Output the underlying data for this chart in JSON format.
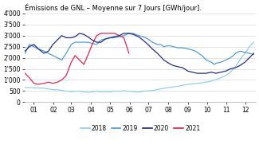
{
  "title": "Émissions de GNL – Moyenne sur 7 Jours [GWh/jour].",
  "colors": {
    "2018": "#87CEEB",
    "2019": "#4499DD",
    "2020": "#1a237e",
    "2021": "#e8194a"
  },
  "legend_labels": [
    "2018",
    "2019",
    "2020",
    "2021"
  ],
  "months": [
    "01",
    "02",
    "03",
    "04",
    "05",
    "06",
    "07",
    "08",
    "09",
    "10",
    "11",
    "12"
  ],
  "month_positions": [
    15,
    46,
    74,
    105,
    135,
    166,
    196,
    227,
    258,
    288,
    319,
    349
  ],
  "ytick_labels": [
    "0",
    "500",
    "1'000",
    "1'500",
    "2'000",
    "2'500",
    "3'000",
    "3'500",
    "4'000"
  ],
  "series_2018": {
    "days": [
      1,
      8,
      15,
      22,
      31,
      38,
      45,
      52,
      59,
      66,
      74,
      80,
      87,
      94,
      100,
      105,
      110,
      115,
      120,
      127,
      135,
      142,
      150,
      157,
      165,
      172,
      180,
      187,
      195,
      202,
      210,
      215,
      220,
      228,
      235,
      242,
      250,
      258,
      265,
      273,
      280,
      287,
      295,
      302,
      310,
      318,
      325,
      333,
      340,
      348,
      355,
      362
    ],
    "values": [
      650,
      660,
      640,
      640,
      630,
      590,
      570,
      560,
      530,
      500,
      470,
      480,
      500,
      460,
      445,
      450,
      470,
      500,
      460,
      480,
      460,
      500,
      490,
      520,
      490,
      470,
      450,
      490,
      510,
      520,
      570,
      600,
      620,
      660,
      690,
      710,
      760,
      800,
      820,
      840,
      870,
      900,
      950,
      1020,
      1100,
      1200,
      1350,
      1600,
      1900,
      2200,
      2500,
      2700
    ]
  },
  "series_2019": {
    "days": [
      1,
      8,
      15,
      22,
      31,
      38,
      45,
      52,
      59,
      66,
      74,
      80,
      87,
      94,
      100,
      107,
      114,
      121,
      128,
      135,
      142,
      150,
      157,
      165,
      172,
      180,
      187,
      195,
      202,
      210,
      215,
      220,
      228,
      235,
      242,
      250,
      258,
      265,
      270,
      275,
      280,
      287,
      295,
      300,
      302,
      310,
      318,
      325,
      330,
      333,
      340,
      348,
      355,
      362
    ],
    "values": [
      2200,
      2600,
      2500,
      2400,
      2300,
      2200,
      2100,
      2000,
      1900,
      2200,
      2600,
      2700,
      2700,
      2700,
      2700,
      2650,
      2600,
      2800,
      2850,
      2900,
      2900,
      2950,
      3000,
      3100,
      3100,
      3000,
      2950,
      2850,
      2700,
      2600,
      2600,
      2500,
      2550,
      2500,
      2450,
      2450,
      2400,
      2350,
      2300,
      2200,
      2100,
      1900,
      1800,
      1700,
      1750,
      1800,
      1900,
      2000,
      2100,
      2200,
      2300,
      2250,
      2200,
      2150
    ]
  },
  "series_2020": {
    "days": [
      1,
      8,
      15,
      22,
      31,
      38,
      45,
      52,
      59,
      66,
      74,
      80,
      87,
      94,
      100,
      107,
      114,
      121,
      128,
      135,
      142,
      150,
      157,
      165,
      172,
      180,
      187,
      195,
      202,
      210,
      215,
      220,
      228,
      235,
      242,
      250,
      258,
      265,
      273,
      280,
      287,
      295,
      302,
      310,
      318,
      325,
      333,
      340,
      348,
      355,
      362
    ],
    "values": [
      2300,
      2500,
      2600,
      2400,
      2200,
      2300,
      2600,
      2800,
      3000,
      2900,
      2900,
      2950,
      3100,
      3050,
      2950,
      2800,
      2700,
      2700,
      2850,
      2900,
      2950,
      3000,
      3100,
      3100,
      3050,
      2950,
      2800,
      2600,
      2400,
      2200,
      2050,
      1900,
      1750,
      1650,
      1600,
      1550,
      1400,
      1350,
      1300,
      1300,
      1300,
      1350,
      1300,
      1350,
      1400,
      1500,
      1550,
      1650,
      1800,
      2000,
      2200
    ]
  },
  "series_2021": {
    "days": [
      1,
      8,
      15,
      22,
      31,
      38,
      45,
      52,
      59,
      66,
      74,
      80,
      87,
      94,
      100,
      107,
      114,
      121,
      128,
      135,
      142,
      150,
      157,
      165
    ],
    "values": [
      1300,
      1100,
      850,
      800,
      850,
      900,
      850,
      900,
      1000,
      1200,
      1800,
      2100,
      1900,
      1700,
      2100,
      2600,
      3000,
      3100,
      3100,
      3100,
      3100,
      3000,
      2900,
      2200
    ]
  }
}
